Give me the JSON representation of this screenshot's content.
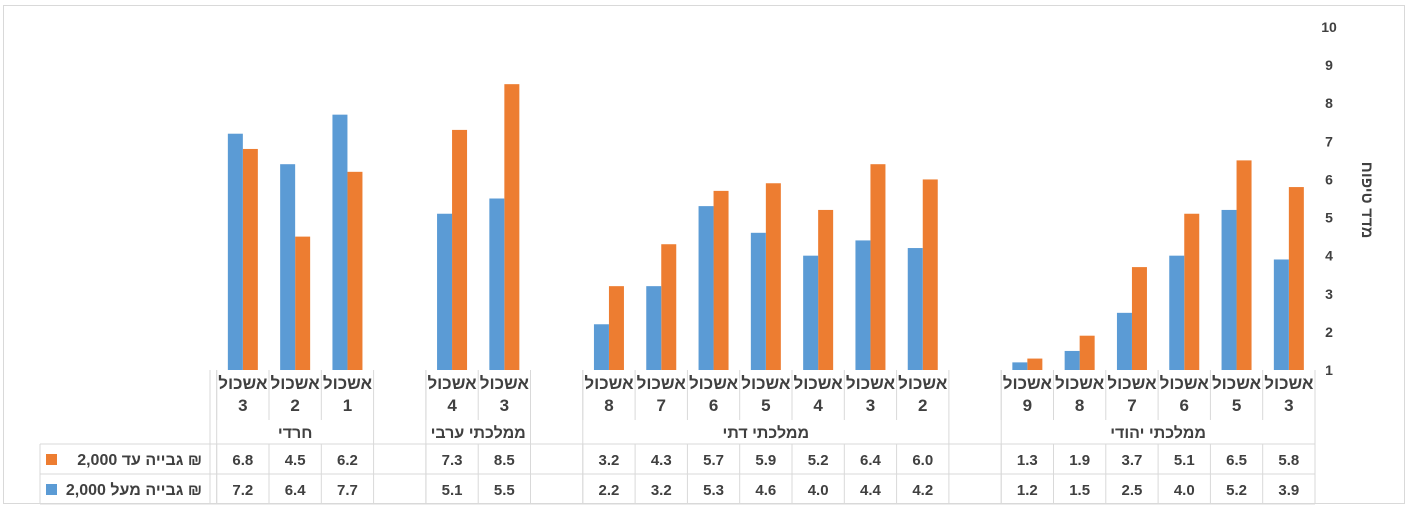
{
  "chart_data": {
    "type": "bar",
    "ylabel": "מדד טיפוח",
    "ylim": [
      1,
      10
    ],
    "yticks": [
      1,
      2,
      3,
      4,
      5,
      6,
      7,
      8,
      9,
      10
    ],
    "grid": false,
    "legend_position": "table-left",
    "groups": [
      {
        "label": "ממלכתי יהודי",
        "categories": [
          "אשכול 3",
          "אשכול 5",
          "אשכול 6",
          "אשכול 7",
          "אשכול 8",
          "אשכול 9"
        ]
      },
      {
        "label": "ממלכתי דתי",
        "categories": [
          "אשכול 2",
          "אשכול 3",
          "אשכול 4",
          "אשכול 5",
          "אשכול 6",
          "אשכול 7",
          "אשכול 8"
        ]
      },
      {
        "label": "ממלכתי ערבי",
        "categories": [
          "אשכול 3",
          "אשכול 4"
        ]
      },
      {
        "label": "חרדי",
        "categories": [
          "אשכול 1",
          "אשכול 2",
          "אשכול 3"
        ]
      }
    ],
    "series": [
      {
        "name": "גבייה עד 2,000 ₪",
        "color": "#ED7D31",
        "values": [
          [
            5.8,
            6.5,
            5.1,
            3.7,
            1.9,
            1.3
          ],
          [
            6.0,
            6.4,
            5.2,
            5.9,
            5.7,
            4.3,
            3.2
          ],
          [
            8.5,
            7.3
          ],
          [
            6.2,
            4.5,
            6.8
          ]
        ]
      },
      {
        "name": "גבייה מעל 2,000 ₪",
        "color": "#5B9BD5",
        "values": [
          [
            3.9,
            5.2,
            4.0,
            2.5,
            1.5,
            1.2
          ],
          [
            4.2,
            4.4,
            4.0,
            4.6,
            5.3,
            3.2,
            2.2
          ],
          [
            5.5,
            5.1
          ],
          [
            7.7,
            6.4,
            7.2
          ]
        ]
      }
    ]
  }
}
